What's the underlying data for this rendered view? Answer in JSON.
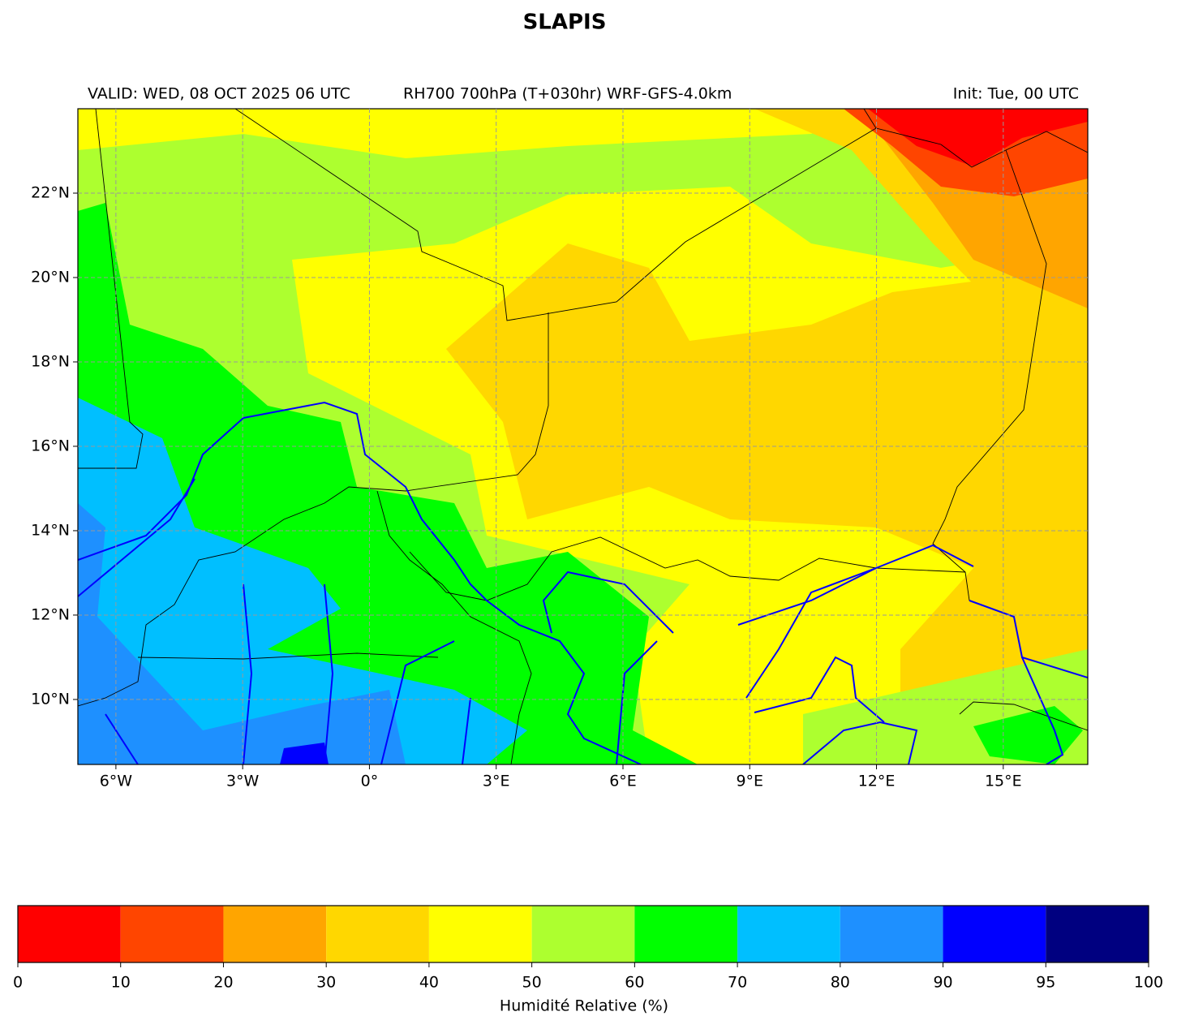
{
  "title": "SLAPIS",
  "header": {
    "valid": "VALID: WED, 08 OCT 2025 06 UTC",
    "product": "RH700 700hPa (T+030hr) WRF-GFS-4.0km",
    "init": "Init: Tue, 00 UTC"
  },
  "map": {
    "lonlim": [
      -6.9,
      17
    ],
    "latlim": [
      8.46,
      24
    ],
    "lonticks": [
      {
        "value": -6,
        "label": "6°W"
      },
      {
        "value": -3,
        "label": "3°W"
      },
      {
        "value": 0,
        "label": "0°"
      },
      {
        "value": 3,
        "label": "3°E"
      },
      {
        "value": 6,
        "label": "6°E"
      },
      {
        "value": 9,
        "label": "9°E"
      },
      {
        "value": 12,
        "label": "12°E"
      },
      {
        "value": 15,
        "label": "15°E"
      }
    ],
    "latticks": [
      {
        "value": 10,
        "label": "10°N"
      },
      {
        "value": 12,
        "label": "12°N"
      },
      {
        "value": 14,
        "label": "14°N"
      },
      {
        "value": 16,
        "label": "16°N"
      },
      {
        "value": 18,
        "label": "18°N"
      },
      {
        "value": 20,
        "label": "20°N"
      },
      {
        "value": 22,
        "label": "22°N"
      }
    ],
    "grid": true
  },
  "colorbar": {
    "label": "Humidité Relative (%)",
    "bounds": [
      0,
      10,
      20,
      30,
      40,
      50,
      60,
      70,
      80,
      90,
      95,
      100
    ],
    "colors": [
      "#ff0000",
      "#ff4500",
      "#ffa500",
      "#ffd700",
      "#ffff00",
      "#adff2f",
      "#00ff00",
      "#00bfff",
      "#1e90ff",
      "#0000ff",
      "#000080"
    ]
  }
}
